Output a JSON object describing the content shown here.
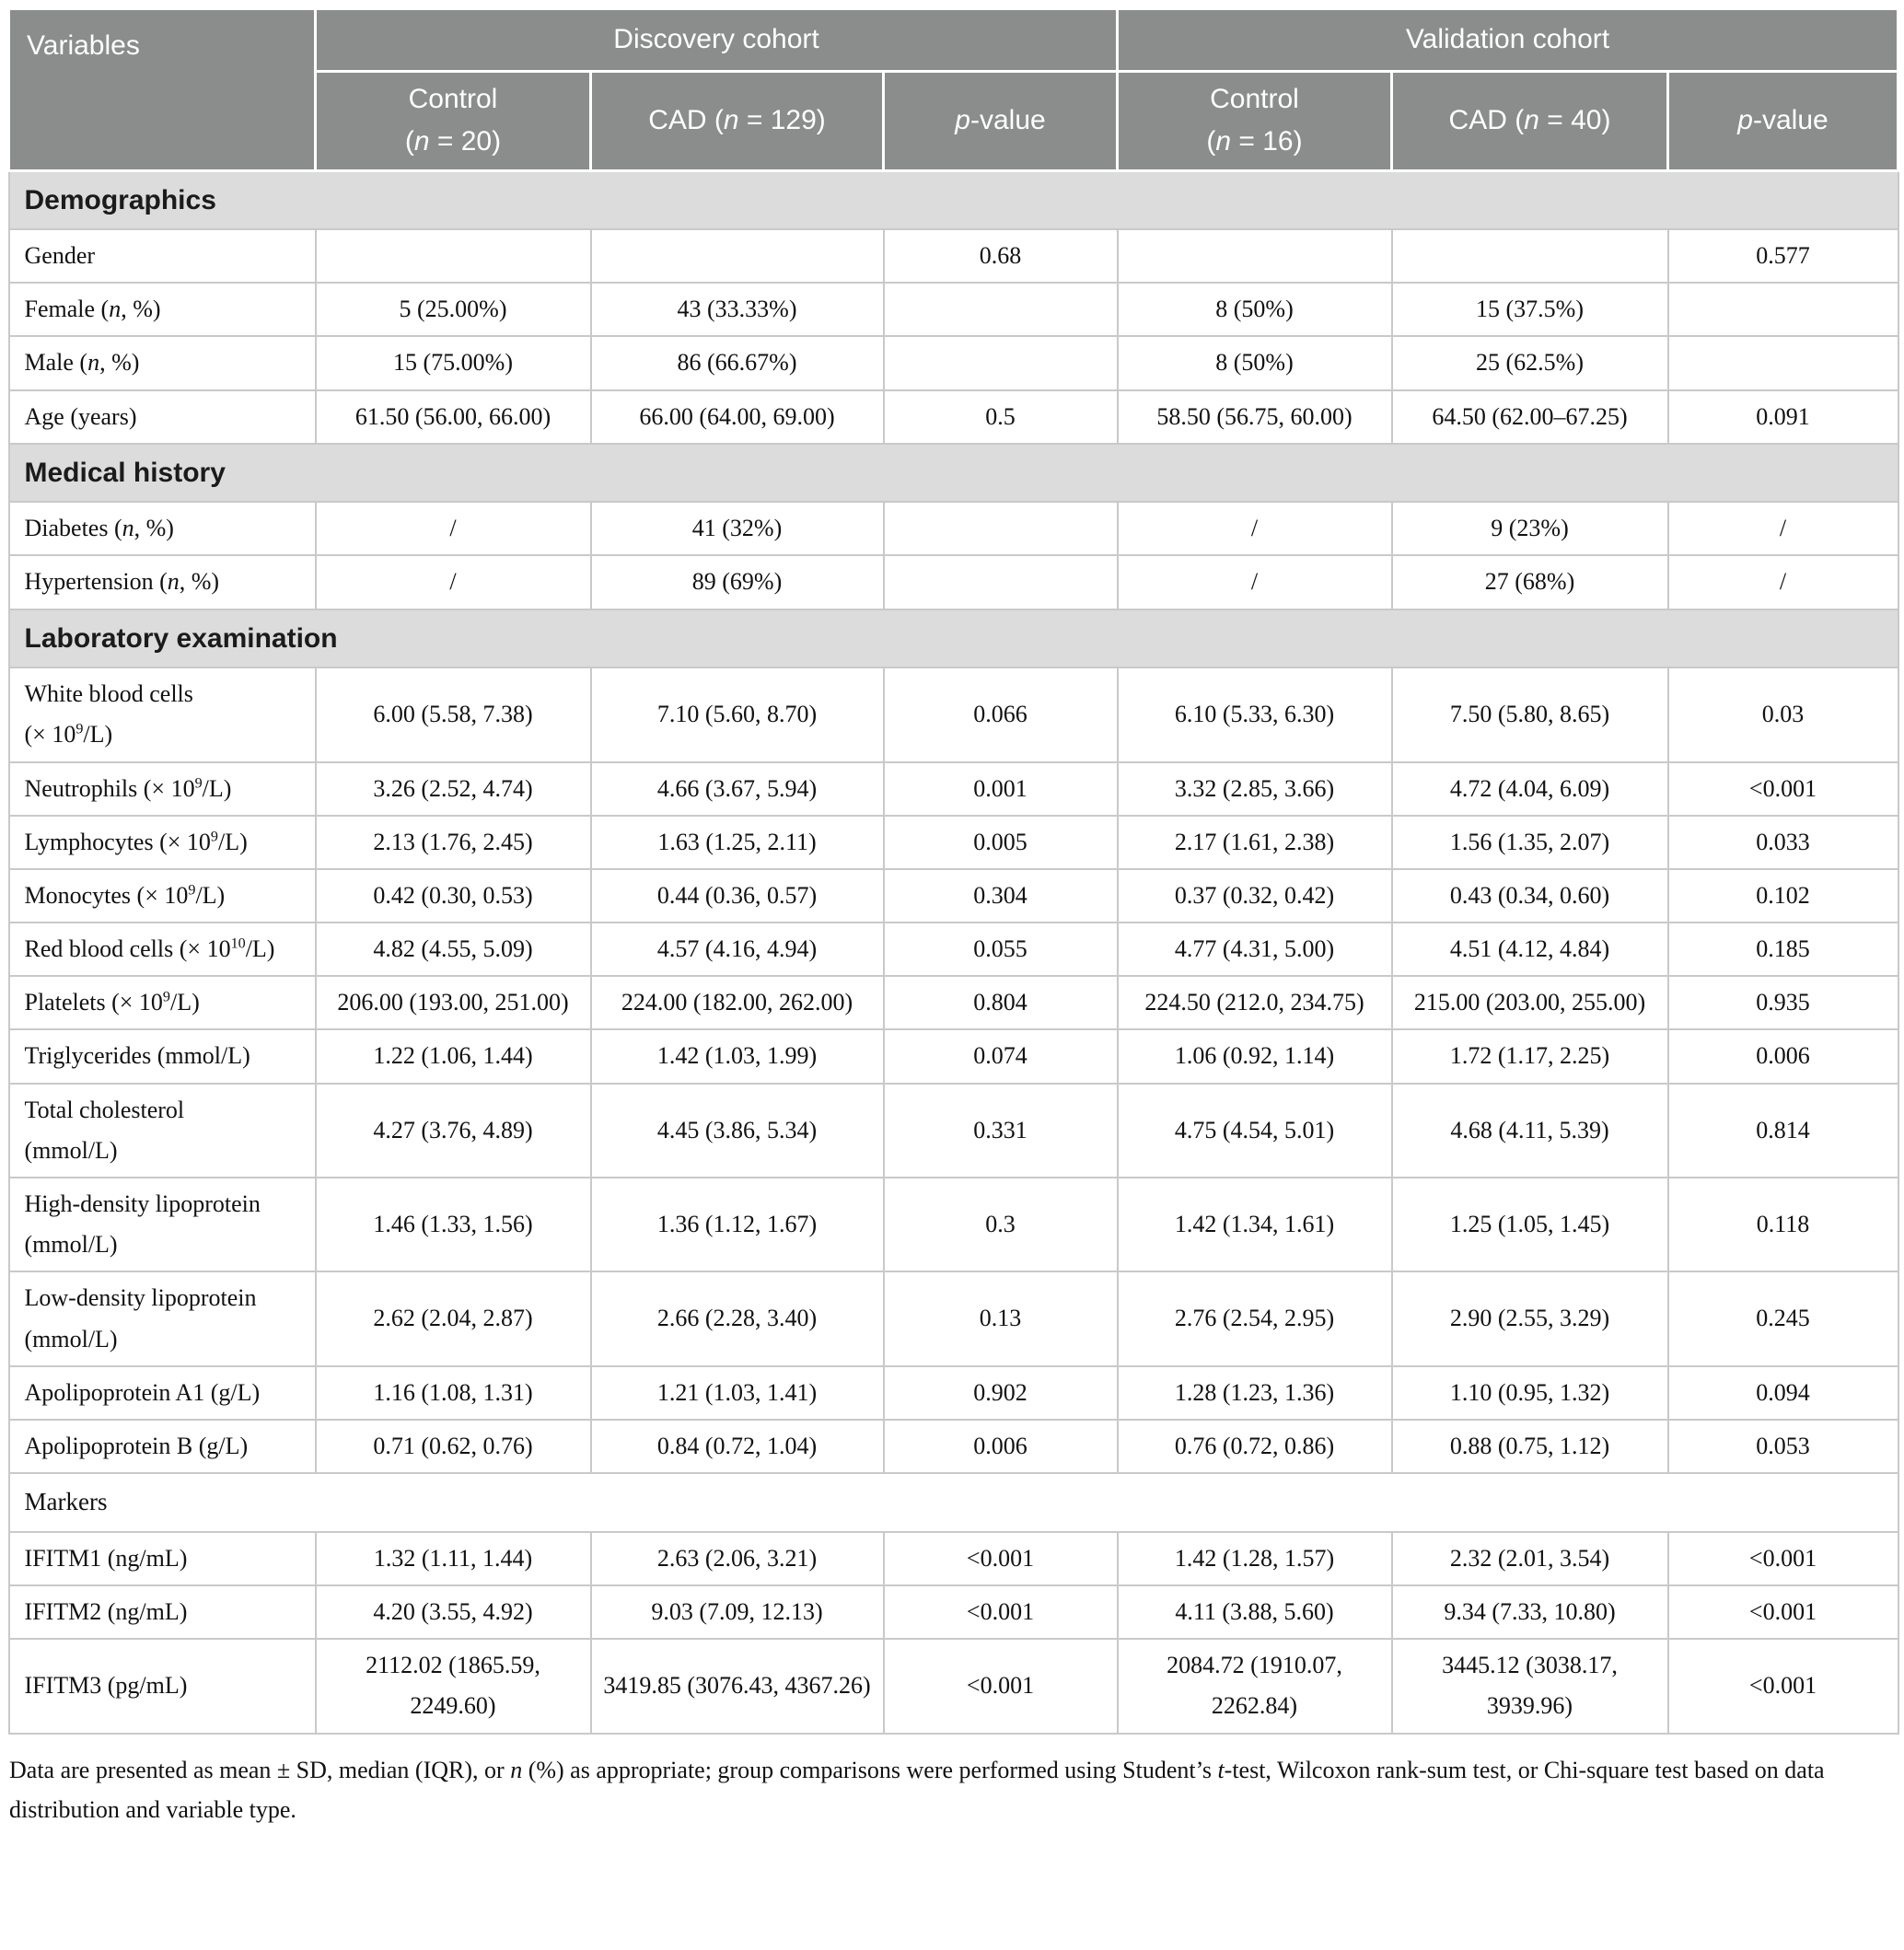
{
  "colors": {
    "header_bg": "#8b8c8c",
    "section_bg": "#dcdcdd",
    "border": "#c9c9c9",
    "header_text": "#ffffff",
    "body_text": "#111111"
  },
  "table": {
    "header": {
      "variables_label": "Variables",
      "group1": "Discovery cohort",
      "group2": "Validation cohort",
      "subheaders": [
        "Control<br>(<i>n</i> = 20)",
        "CAD (<i>n</i> = 129)",
        "<i>p</i>-value",
        "Control<br>(<i>n</i> = 16)",
        "CAD (<i>n</i> = 40)",
        "<i>p</i>-value"
      ]
    },
    "rows": [
      {
        "type": "section",
        "label": "Demographics"
      },
      {
        "type": "data",
        "label": "Gender",
        "cells": [
          "",
          "",
          "0.68",
          "",
          "",
          "0.577"
        ]
      },
      {
        "type": "data",
        "label": "Female (<i>n</i>, %)",
        "cells": [
          "5 (25.00%)",
          "43 (33.33%)",
          "",
          "8 (50%)",
          "15 (37.5%)",
          ""
        ]
      },
      {
        "type": "data",
        "label": "Male (<i>n</i>, %)",
        "cells": [
          "15 (75.00%)",
          "86 (66.67%)",
          "",
          "8 (50%)",
          "25 (62.5%)",
          ""
        ]
      },
      {
        "type": "data",
        "label": "Age (years)",
        "cells": [
          "61.50 (56.00, 66.00)",
          "66.00 (64.00, 69.00)",
          "0.5",
          "58.50 (56.75, 60.00)",
          "64.50 (62.00–67.25)",
          "0.091"
        ]
      },
      {
        "type": "section",
        "label": "Medical history"
      },
      {
        "type": "data",
        "label": "Diabetes (<i>n</i>, %)",
        "cells": [
          "/",
          "41 (32%)",
          "",
          "/",
          "9 (23%)",
          "/"
        ]
      },
      {
        "type": "data",
        "label": "Hypertension (<i>n</i>, %)",
        "cells": [
          "/",
          "89 (69%)",
          "",
          "/",
          "27 (68%)",
          "/"
        ]
      },
      {
        "type": "section",
        "label": "Laboratory examination"
      },
      {
        "type": "data",
        "label": "White blood cells<br>(× 10<sup>9</sup>/L)",
        "cells": [
          "6.00 (5.58, 7.38)",
          "7.10 (5.60, 8.70)",
          "0.066",
          "6.10 (5.33, 6.30)",
          "7.50 (5.80, 8.65)",
          "0.03"
        ]
      },
      {
        "type": "data",
        "label": "Neutrophils (× 10<sup>9</sup>/L)",
        "cells": [
          "3.26 (2.52, 4.74)",
          "4.66 (3.67, 5.94)",
          "0.001",
          "3.32 (2.85, 3.66)",
          "4.72 (4.04, 6.09)",
          "<0.001"
        ]
      },
      {
        "type": "data",
        "label": "Lymphocytes (× 10<sup>9</sup>/L)",
        "cells": [
          "2.13 (1.76, 2.45)",
          "1.63 (1.25, 2.11)",
          "0.005",
          "2.17 (1.61, 2.38)",
          "1.56 (1.35, 2.07)",
          "0.033"
        ]
      },
      {
        "type": "data",
        "label": "Monocytes (× 10<sup>9</sup>/L)",
        "cells": [
          "0.42 (0.30, 0.53)",
          "0.44 (0.36, 0.57)",
          "0.304",
          "0.37 (0.32, 0.42)",
          "0.43 (0.34, 0.60)",
          "0.102"
        ]
      },
      {
        "type": "data",
        "label": "Red blood cells (× 10<sup>10</sup>/L)",
        "cells": [
          "4.82 (4.55, 5.09)",
          "4.57 (4.16, 4.94)",
          "0.055",
          "4.77 (4.31, 5.00)",
          "4.51 (4.12, 4.84)",
          "0.185"
        ]
      },
      {
        "type": "data",
        "label": "Platelets (× 10<sup>9</sup>/L)",
        "cells": [
          "206.00 (193.00, 251.00)",
          "224.00 (182.00, 262.00)",
          "0.804",
          "224.50 (212.0, 234.75)",
          "215.00 (203.00, 255.00)",
          "0.935"
        ]
      },
      {
        "type": "data",
        "label": "Triglycerides (mmol/L)",
        "cells": [
          "1.22 (1.06, 1.44)",
          "1.42 (1.03, 1.99)",
          "0.074",
          "1.06 (0.92, 1.14)",
          "1.72 (1.17, 2.25)",
          "0.006"
        ]
      },
      {
        "type": "data",
        "label": "Total cholesterol<br>(mmol/L)",
        "cells": [
          "4.27 (3.76, 4.89)",
          "4.45 (3.86, 5.34)",
          "0.331",
          "4.75 (4.54, 5.01)",
          "4.68 (4.11, 5.39)",
          "0.814"
        ]
      },
      {
        "type": "data",
        "label": "High-density lipoprotein<br>(mmol/L)",
        "cells": [
          "1.46 (1.33, 1.56)",
          "1.36 (1.12, 1.67)",
          "0.3",
          "1.42 (1.34, 1.61)",
          "1.25 (1.05, 1.45)",
          "0.118"
        ]
      },
      {
        "type": "data",
        "label": "Low-density lipoprotein<br>(mmol/L)",
        "cells": [
          "2.62 (2.04, 2.87)",
          "2.66 (2.28, 3.40)",
          "0.13",
          "2.76 (2.54, 2.95)",
          "2.90 (2.55, 3.29)",
          "0.245"
        ]
      },
      {
        "type": "data",
        "label": "Apolipoprotein A1 (g/L)",
        "cells": [
          "1.16 (1.08, 1.31)",
          "1.21 (1.03, 1.41)",
          "0.902",
          "1.28 (1.23, 1.36)",
          "1.10 (0.95, 1.32)",
          "0.094"
        ]
      },
      {
        "type": "data",
        "label": "Apolipoprotein B (g/L)",
        "cells": [
          "0.71 (0.62, 0.76)",
          "0.84 (0.72, 1.04)",
          "0.006",
          "0.76 (0.72, 0.86)",
          "0.88 (0.75, 1.12)",
          "0.053"
        ]
      },
      {
        "type": "subsection",
        "label": "Markers"
      },
      {
        "type": "data",
        "label": "IFITM1 (ng/mL)",
        "cells": [
          "1.32 (1.11, 1.44)",
          "2.63 (2.06, 3.21)",
          "<0.001",
          "1.42 (1.28, 1.57)",
          "2.32 (2.01, 3.54)",
          "<0.001"
        ]
      },
      {
        "type": "data",
        "label": "IFITM2 (ng/mL)",
        "cells": [
          "4.20 (3.55, 4.92)",
          "9.03 (7.09, 12.13)",
          "<0.001",
          "4.11 (3.88, 5.60)",
          "9.34 (7.33, 10.80)",
          "<0.001"
        ]
      },
      {
        "type": "data",
        "label": "IFITM3 (pg/mL)",
        "cells": [
          "2112.02 (1865.59, 2249.60)",
          "3419.85 (3076.43, 4367.26)",
          "<0.001",
          "2084.72 (1910.07, 2262.84)",
          "3445.12 (3038.17, 3939.96)",
          "<0.001"
        ]
      }
    ]
  },
  "footnote": {
    "text": "Data are presented as mean ± SD, median (IQR), or <i>n</i> (%) as appropriate; group comparisons were performed using Student’s <i>t</i>-test, Wilcoxon rank-sum test, or Chi-square test based on data distribution and variable type."
  }
}
